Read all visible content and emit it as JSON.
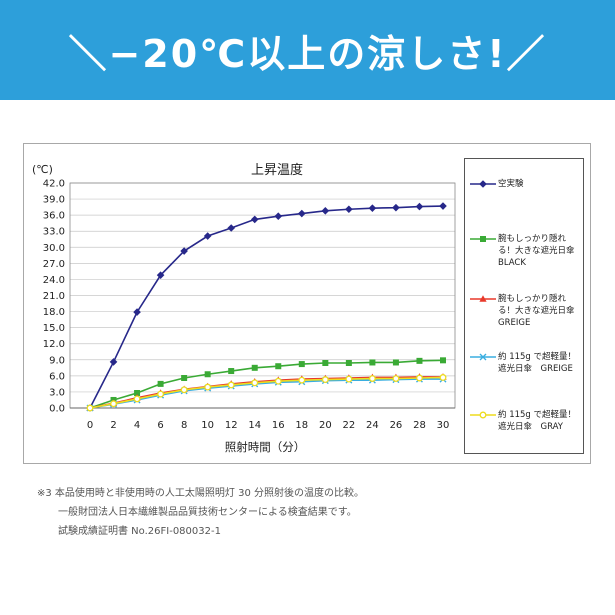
{
  "colors": {
    "banner": "#2d9fda"
  },
  "banner": {
    "headline": "＼−20℃以上の涼しさ!／"
  },
  "chart_data": {
    "type": "line",
    "title": "上昇温度",
    "ylabel": "(℃)",
    "xlabel": "照射時間（分）",
    "x": [
      0,
      2,
      4,
      6,
      8,
      10,
      12,
      14,
      16,
      18,
      20,
      22,
      24,
      26,
      28,
      30
    ],
    "xlim": [
      0,
      30
    ],
    "ylim": [
      0,
      42
    ],
    "yticks": [
      0,
      3,
      6,
      9,
      12,
      15,
      18,
      21,
      24,
      27,
      30,
      33,
      36,
      39,
      42
    ],
    "grid": true,
    "legend_position": "right",
    "series": [
      {
        "name": "空実験",
        "color": "#27288a",
        "marker": "diamond",
        "values": [
          0.0,
          8.6,
          17.9,
          24.8,
          29.3,
          32.1,
          33.6,
          35.2,
          35.8,
          36.3,
          36.8,
          37.1,
          37.3,
          37.4,
          37.6,
          37.7
        ]
      },
      {
        "name": "腕もしっかり隠れ\nる！大きな遮光日傘\nBLACK",
        "color": "#3aaa35",
        "marker": "square",
        "values": [
          0.0,
          1.5,
          2.8,
          4.5,
          5.6,
          6.3,
          6.9,
          7.5,
          7.8,
          8.2,
          8.4,
          8.4,
          8.5,
          8.5,
          8.8,
          8.9
        ]
      },
      {
        "name": "腕もしっかり隠れ\nる！大きな遮光日傘\nGREIGE",
        "color": "#e8392a",
        "marker": "triangle",
        "values": [
          0.0,
          0.9,
          1.9,
          2.8,
          3.5,
          4.0,
          4.5,
          4.9,
          5.2,
          5.4,
          5.5,
          5.6,
          5.7,
          5.7,
          5.8,
          5.8
        ]
      },
      {
        "name": "約 115g で超軽量！\n遮光日傘　GREIGE",
        "color": "#3aaee0",
        "marker": "x",
        "values": [
          0.0,
          0.7,
          1.5,
          2.4,
          3.2,
          3.7,
          4.1,
          4.5,
          4.8,
          4.9,
          5.1,
          5.2,
          5.2,
          5.3,
          5.4,
          5.4
        ]
      },
      {
        "name": "約 115g で超軽量！\n遮光日傘　GRAY",
        "color": "#eedc1f",
        "marker": "circle",
        "values": [
          0.0,
          0.8,
          1.7,
          2.6,
          3.4,
          3.9,
          4.3,
          4.7,
          5.0,
          5.2,
          5.3,
          5.4,
          5.5,
          5.5,
          5.6,
          5.7
        ]
      }
    ]
  },
  "footnotes": [
    "※3 本品使用時と非使用時の人工太陽照明灯 30 分照射後の温度の比較。",
    "一般財団法人日本繊維製品品質技術センターによる検査結果です。",
    "試験成績証明書 No.26FI-080032-1"
  ]
}
